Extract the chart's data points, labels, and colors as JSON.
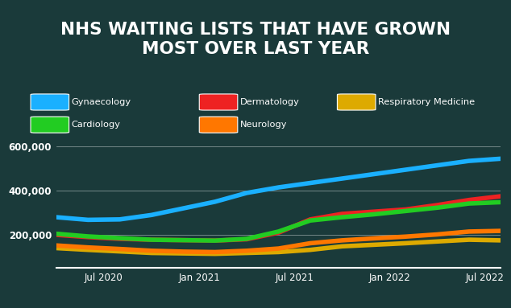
{
  "title": "NHS WAITING LISTS THAT HAVE GROWN\nMOST OVER LAST YEAR",
  "title_bg_color": "#c8102e",
  "title_text_color": "#ffffff",
  "bg_color": "#1a3a3a",
  "series": {
    "Gynaecology": {
      "color": "#1ab0ff",
      "values": [
        280000,
        268000,
        270000,
        290000,
        320000,
        350000,
        390000,
        415000,
        435000,
        455000,
        475000,
        495000,
        515000,
        535000,
        545000
      ]
    },
    "Dermatology": {
      "color": "#ee2222",
      "values": [
        200000,
        190000,
        182000,
        178000,
        176000,
        174000,
        180000,
        210000,
        270000,
        295000,
        305000,
        315000,
        335000,
        358000,
        375000
      ]
    },
    "Respiratory Medicine": {
      "color": "#ddaa00",
      "values": [
        140000,
        132000,
        125000,
        118000,
        116000,
        114000,
        118000,
        122000,
        132000,
        148000,
        155000,
        162000,
        170000,
        178000,
        175000
      ]
    },
    "Cardiology": {
      "color": "#22cc22",
      "values": [
        205000,
        193000,
        185000,
        178000,
        176000,
        174000,
        182000,
        215000,
        265000,
        280000,
        293000,
        308000,
        323000,
        342000,
        348000
      ]
    },
    "Neurology": {
      "color": "#ff7700",
      "values": [
        152000,
        143000,
        136000,
        128000,
        124000,
        122000,
        128000,
        138000,
        162000,
        175000,
        184000,
        192000,
        202000,
        215000,
        218000
      ]
    }
  },
  "x_tick_positions": [
    3,
    9,
    15,
    21,
    27
  ],
  "x_tick_labels": [
    "Jul 2020",
    "Jan 2021",
    "Jul 2021",
    "Jan 2022",
    "Jul 2022"
  ],
  "ylim": [
    50000,
    650000
  ],
  "yticks": [
    200000,
    400000,
    600000
  ],
  "ytick_labels": [
    "200,000",
    "400,000",
    "600,000"
  ],
  "legend_order": [
    "Gynaecology",
    "Dermatology",
    "Respiratory Medicine",
    "Cardiology",
    "Neurology"
  ],
  "line_width": 4.0,
  "legend_row1": [
    "Gynaecology",
    "Dermatology",
    "Respiratory Medicine"
  ],
  "legend_row2": [
    "Cardiology",
    "Neurology"
  ]
}
